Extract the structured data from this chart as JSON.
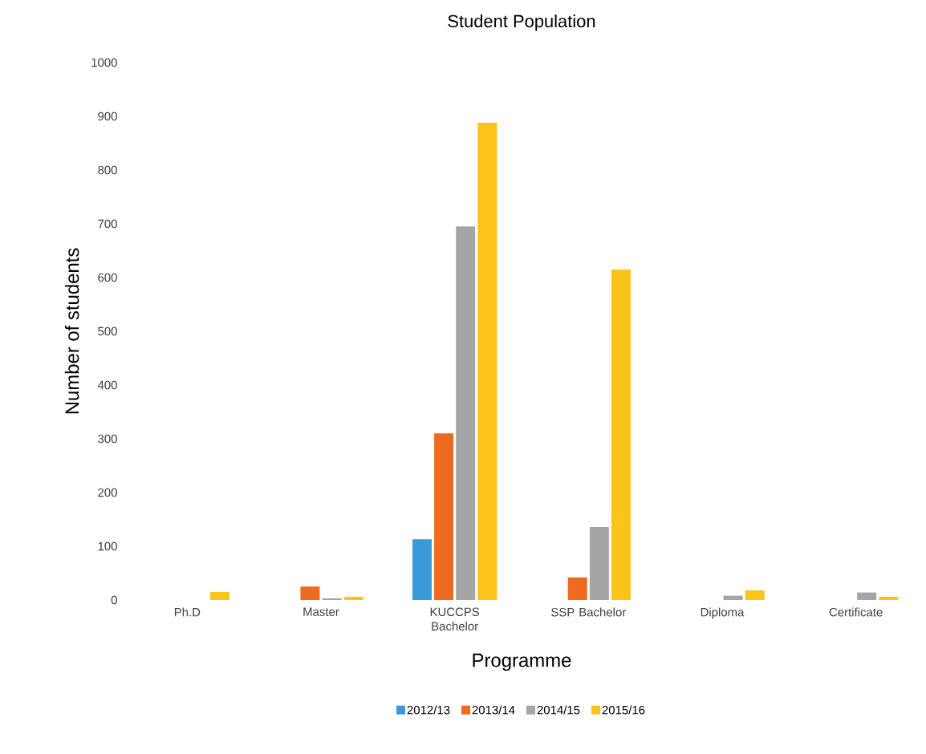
{
  "chart_data": {
    "type": "bar",
    "title": "Student Population",
    "xlabel": "Programme",
    "ylabel": "Number of students",
    "categories": [
      "Ph.D",
      "Master",
      "KUCCPS Bachelor",
      "SSP Bachelor",
      "Diploma",
      "Certificate"
    ],
    "series": [
      {
        "name": "2012/13",
        "color": "#3a9ad9",
        "values": [
          null,
          null,
          113,
          null,
          null,
          null
        ]
      },
      {
        "name": "2013/14",
        "color": "#ed6b1f",
        "values": [
          null,
          25,
          310,
          42,
          null,
          null
        ]
      },
      {
        "name": "2014/15",
        "color": "#a5a5a5",
        "values": [
          null,
          3,
          695,
          136,
          8,
          14
        ]
      },
      {
        "name": "2015/16",
        "color": "#fcc419",
        "values": [
          15,
          6,
          888,
          615,
          18,
          6
        ]
      }
    ],
    "ylim": [
      0,
      1000
    ],
    "yticks": [
      0,
      100,
      200,
      300,
      400,
      500,
      600,
      700,
      800,
      900,
      1000
    ],
    "grid": false,
    "legend": "bottom"
  }
}
